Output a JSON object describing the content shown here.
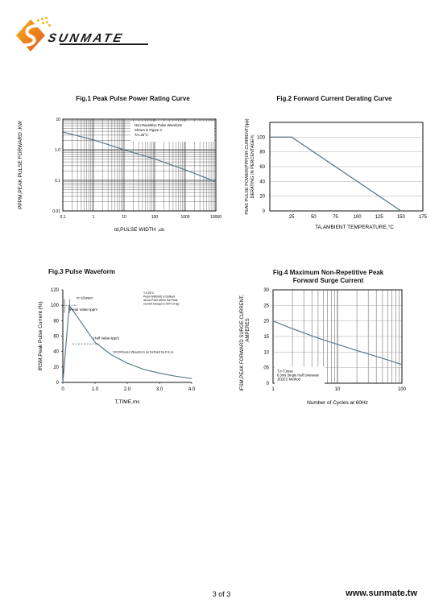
{
  "header": {
    "brand": "SUNMATE"
  },
  "footer": {
    "page": "3 of 3",
    "url": "www.sunmate.tw"
  },
  "chart_data": [
    {
      "type": "line",
      "title": "Fig.1  Peak Pulse Power Rating Curve",
      "xlabel": "td,PULSE WIDTH ,us",
      "ylabel": "PPPM,PEAK PULSE FORWARD ,KW",
      "xscale": "log",
      "yscale": "log",
      "xlim": [
        0.1,
        10000
      ],
      "ylim": [
        0.01,
        10
      ],
      "xticks": [
        "0.1",
        "1",
        "10",
        "100",
        "1000",
        "10000"
      ],
      "yticks": [
        "10",
        "1.0",
        "0.1",
        "0.01"
      ],
      "annotation": [
        "Non-Repetitive Pulse Waveform",
        "Shown in Figure 3",
        "TA=25°C"
      ],
      "series": [
        {
          "x": [
            0.1,
            1,
            10,
            100,
            1000,
            10000
          ],
          "y": [
            3.8,
            2.1,
            1.0,
            0.5,
            0.22,
            0.09
          ]
        }
      ]
    },
    {
      "type": "line",
      "title": "Fig.2  Forward Current Derating Curve",
      "xlabel": "TA,AMBIENT TEMPERATURE,°C",
      "ylabel": [
        "PEAK PULSE POWER(PPP)OR CURRENT(Ipp)",
        "DERATING IN PERCENTAGE%"
      ],
      "xlim": [
        0,
        175
      ],
      "ylim": [
        0,
        120
      ],
      "xticks": [
        "25",
        "50",
        "75",
        "100",
        "125",
        "150",
        "175"
      ],
      "yticks": [
        "0",
        "20",
        "40",
        "60",
        "80",
        "100"
      ],
      "series": [
        {
          "x": [
            0,
            25,
            150
          ],
          "y": [
            100,
            100,
            0
          ]
        }
      ]
    },
    {
      "type": "line",
      "title": "Fig.3  Pulse Waveform",
      "xlabel": "T,TIME,ms",
      "ylabel": "IRSM,Peak Pulse Current (%)",
      "xlim": [
        0,
        4.0
      ],
      "ylim": [
        0,
        120
      ],
      "xticks": [
        "0",
        "1.0",
        "2.0",
        "3.0",
        "4.0"
      ],
      "yticks": [
        "0",
        "20",
        "40",
        "60",
        "80",
        "100",
        "120"
      ],
      "annotations": {
        "tr": "tr=10usec",
        "peak": "Peak  Value  Ippm",
        "half": "Half  Value-Ipp/2",
        "waveform": "10/1000usec  Waveform as Defined by R.E.A.",
        "conditions": [
          "TJ=25°C",
          "Pulse   Width(td) is Defined",
          "as the Point  where the Peak",
          "Current  Decays to 50% of Ipp"
        ]
      },
      "series": [
        {
          "x": [
            0,
            0.2,
            0.5,
            1.0,
            1.5,
            2.0,
            2.5,
            3.0,
            3.5,
            4.0
          ],
          "y": [
            0,
            100,
            82,
            52,
            36,
            25,
            17,
            12,
            8,
            5
          ]
        }
      ]
    },
    {
      "type": "line",
      "title": [
        "Fig.4  Maximum Non-Repetitive Peak",
        "Forward Surge Current"
      ],
      "xlabel": "Number of Cycles at 60Hz",
      "ylabel": [
        "IFSM,PEAK FORWARD SURGE CURRENT,",
        "AMPERES"
      ],
      "xscale": "log",
      "xlim": [
        1,
        100
      ],
      "ylim": [
        0,
        30
      ],
      "xticks": [
        "1",
        "10",
        "100"
      ],
      "yticks": [
        "0",
        "05",
        "10",
        "15",
        "20",
        "25",
        "30"
      ],
      "annotation": [
        "TJ=TJmax",
        "8.3ms Single Half  Sinewave",
        "JEDEC Method"
      ],
      "series": [
        {
          "x": [
            1,
            2,
            5,
            10,
            20,
            50,
            100
          ],
          "y": [
            20,
            17.5,
            14.5,
            12.5,
            10.5,
            8,
            6
          ]
        }
      ]
    }
  ]
}
